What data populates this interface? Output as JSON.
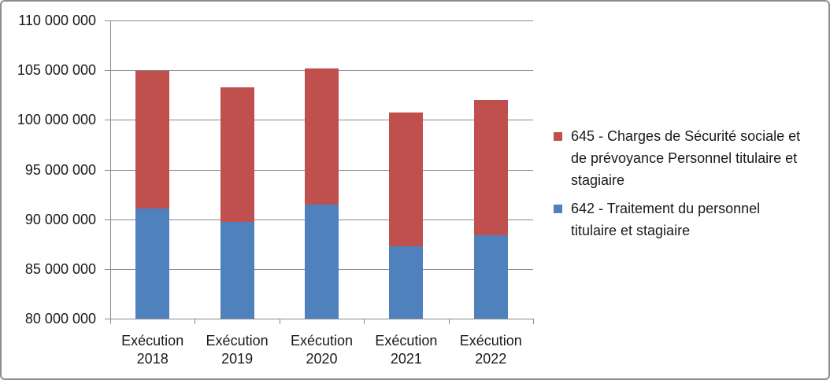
{
  "chart_data": {
    "type": "bar",
    "stacked": true,
    "orientation": "vertical",
    "title": "",
    "xlabel": "",
    "ylabel": "",
    "categories": [
      "Exécution\n2018",
      "Exécution\n2019",
      "Exécution\n2020",
      "Exécution\n2021",
      "Exécution\n2022"
    ],
    "series": [
      {
        "name": "642 - Traitement du personnel titulaire et stagiaire",
        "color": "#4F81BD",
        "values": [
          91100000,
          89700000,
          91500000,
          87300000,
          88400000
        ]
      },
      {
        "name": "645 - Charges de Sécurité sociale et de prévoyance Personnel titulaire et stagiaire",
        "color": "#C0504D",
        "values": [
          13800000,
          13600000,
          13700000,
          13400000,
          13600000
        ]
      }
    ],
    "stack_totals": [
      104900000,
      103300000,
      105200000,
      100700000,
      102000000
    ],
    "ylim": [
      80000000,
      110000000
    ],
    "ytick_step": 5000000,
    "ytick_labels": [
      "110 000 000",
      "105 000 000",
      "100 000 000",
      "95 000 000",
      "90 000 000",
      "85 000 000",
      "80 000 000"
    ],
    "grid": true,
    "legend_position": "right",
    "legend": {
      "items": [
        {
          "label": "645 - Charges de Sécurité sociale et\nde prévoyance Personnel titulaire et\nstagiaire",
          "color": "#C0504D"
        },
        {
          "label": "642 - Traitement du personnel\ntitulaire et stagiaire",
          "color": "#4F81BD"
        }
      ]
    },
    "colors": {
      "series_blue": "#4F81BD",
      "series_red": "#C0504D",
      "gridline": "#898989",
      "axis": "#898989",
      "text": "#1A1A1A",
      "chart_border": "#8C8C8C",
      "background": "#FFFFFF"
    }
  }
}
